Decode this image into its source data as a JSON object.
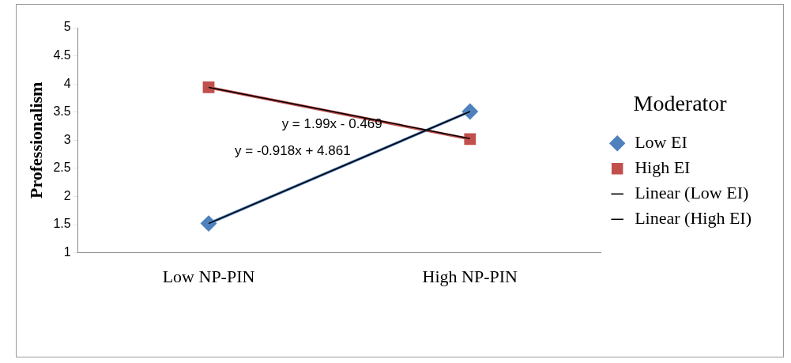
{
  "chart_data": {
    "type": "line",
    "ylabel": "Professionalism",
    "legend_title": "Moderator",
    "categories": [
      "Low NP-PIN",
      "High NP-PIN"
    ],
    "series": [
      {
        "name": "Low EI",
        "color": "#4f81bd",
        "values": [
          1.52,
          3.51
        ],
        "marker": "diamond"
      },
      {
        "name": "High EI",
        "color": "#c0504d",
        "values": [
          3.94,
          3.02
        ],
        "marker": "square"
      },
      {
        "name": "Linear (Low EI)",
        "color": "#000000",
        "type": "line",
        "x": [
          "Low NP-PIN",
          "High NP-PIN"
        ],
        "values": [
          1.52,
          3.51
        ],
        "marker": "none"
      },
      {
        "name": "Linear (High EI)",
        "color": "#000000",
        "type": "line",
        "x": [
          "Low NP-PIN",
          "High NP-PIN"
        ],
        "values": [
          3.94,
          3.03
        ],
        "marker": "none"
      }
    ],
    "ylim": [
      1,
      5
    ],
    "yticks": [
      1,
      1.5,
      2,
      2.5,
      3,
      3.5,
      4,
      4.5,
      5
    ],
    "grid": false,
    "legend": "right",
    "annotations": [
      "y = 1.99x - 0.469",
      "y = -0.918x + 4.861"
    ]
  }
}
